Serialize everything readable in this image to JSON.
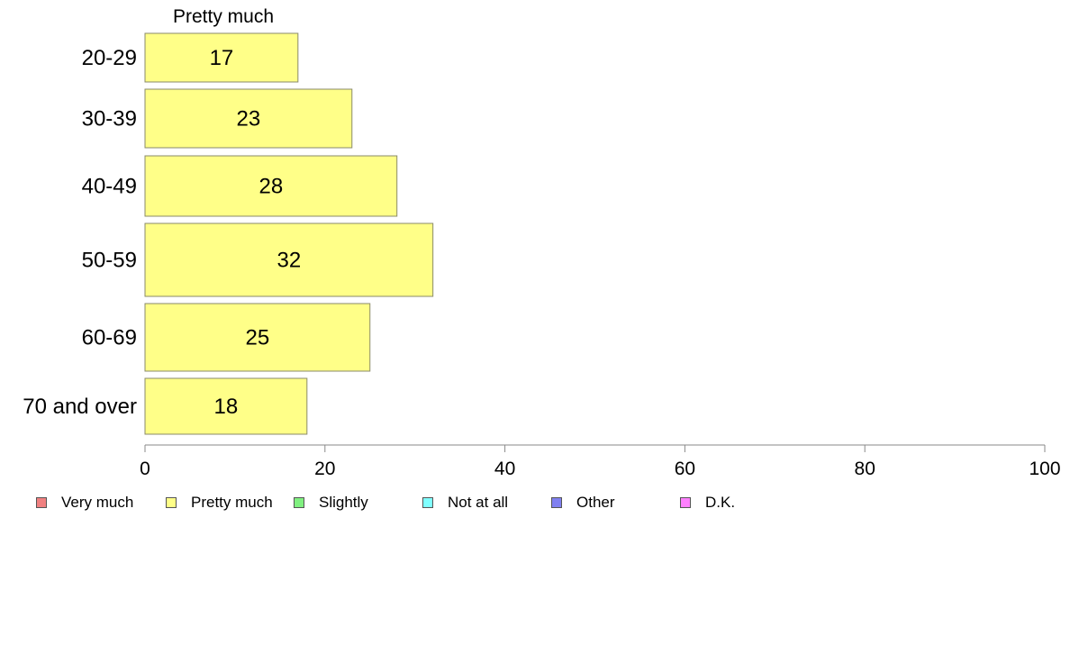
{
  "chart_data": {
    "type": "bar",
    "orientation": "horizontal",
    "series_label": "Pretty much",
    "categories": [
      "20-29",
      "30-39",
      "40-49",
      "50-59",
      "60-69",
      "70 and over"
    ],
    "values": [
      17,
      23,
      28,
      32,
      25,
      18
    ],
    "value_labels": [
      "17",
      "23",
      "28",
      "32",
      "25",
      "18"
    ],
    "xlim": [
      0,
      100
    ],
    "xticks": [
      "0",
      "20",
      "40",
      "60",
      "80",
      "100"
    ],
    "grid": false,
    "legend_position": "bottom",
    "legend": [
      {
        "label": "Very much",
        "color": "#f08080"
      },
      {
        "label": "Pretty much",
        "color": "#ffff88"
      },
      {
        "label": "Slightly",
        "color": "#80f080"
      },
      {
        "label": "Not at all",
        "color": "#80ffff"
      },
      {
        "label": "Other",
        "color": "#8080f0"
      },
      {
        "label": "D.K.",
        "color": "#ff80ff"
      }
    ],
    "bar_color": "#ffff88",
    "bar_stroke": "#8a8a6a",
    "axis_color": "#888888"
  }
}
